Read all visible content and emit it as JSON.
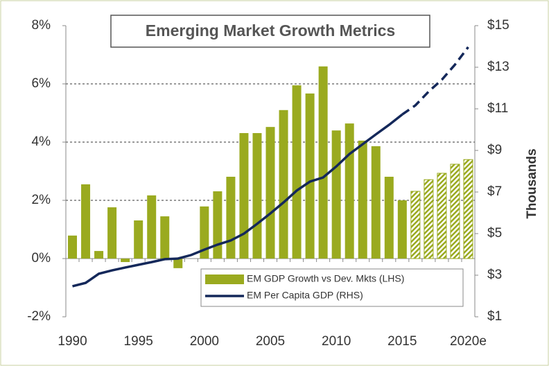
{
  "chart_data": {
    "type": "bar_line",
    "title": "Emerging Market Growth Metrics",
    "categories": [
      "1990",
      null,
      null,
      null,
      null,
      "1995",
      null,
      null,
      null,
      null,
      "2000",
      null,
      null,
      null,
      null,
      "2005",
      null,
      null,
      null,
      null,
      "2010",
      null,
      null,
      null,
      null,
      "2015",
      null,
      null,
      null,
      null,
      "2020e"
    ],
    "projected": [
      false,
      false,
      false,
      false,
      false,
      false,
      false,
      false,
      false,
      false,
      false,
      false,
      false,
      false,
      false,
      false,
      false,
      false,
      false,
      false,
      false,
      false,
      false,
      false,
      false,
      false,
      true,
      true,
      true,
      true,
      true
    ],
    "series": [
      {
        "name": "EM GDP Growth vs Dev. Mkts (LHS)",
        "type": "bar",
        "color": "#9aaa1f",
        "axis": "y",
        "values": [
          0.79,
          2.55,
          0.26,
          1.76,
          -0.12,
          1.31,
          2.17,
          1.45,
          -0.33,
          0,
          1.79,
          2.31,
          2.81,
          4.31,
          4.31,
          4.52,
          5.1,
          5.95,
          5.67,
          6.6,
          4.4,
          4.64,
          4.05,
          3.86,
          2.81,
          2.0,
          2.31,
          2.71,
          2.93,
          3.24,
          3.4
        ]
      },
      {
        "name": "EM Per Capita GDP (RHS)",
        "type": "line",
        "color": "#14285a",
        "axis": "y2",
        "values": [
          2.47,
          2.63,
          3.07,
          3.23,
          3.37,
          3.5,
          3.63,
          3.77,
          3.8,
          3.97,
          4.23,
          4.47,
          4.67,
          5.0,
          5.47,
          5.97,
          6.5,
          7.07,
          7.5,
          7.7,
          8.23,
          8.83,
          9.3,
          9.77,
          10.23,
          10.73,
          11.17,
          11.83,
          12.4,
          13.13,
          13.97
        ]
      }
    ],
    "ylim": [
      -2,
      8
    ],
    "yticks": [
      {
        "value": -2,
        "label": "-2%"
      },
      {
        "value": 0,
        "label": "0%"
      },
      {
        "value": 2,
        "label": "2%"
      },
      {
        "value": 4,
        "label": "4%"
      },
      {
        "value": 6,
        "label": "6%"
      },
      {
        "value": 8,
        "label": "8%"
      }
    ],
    "y2lim": [
      1,
      15
    ],
    "y2ticks": [
      {
        "value": 1,
        "label": "$1"
      },
      {
        "value": 3,
        "label": "$3"
      },
      {
        "value": 5,
        "label": "$5"
      },
      {
        "value": 7,
        "label": "$7"
      },
      {
        "value": 9,
        "label": "$9"
      },
      {
        "value": 11,
        "label": "$11"
      },
      {
        "value": 13,
        "label": "$13"
      },
      {
        "value": 15,
        "label": "$15"
      }
    ],
    "y2label": "Thousands",
    "grid": true,
    "legend": "bottom-right"
  }
}
